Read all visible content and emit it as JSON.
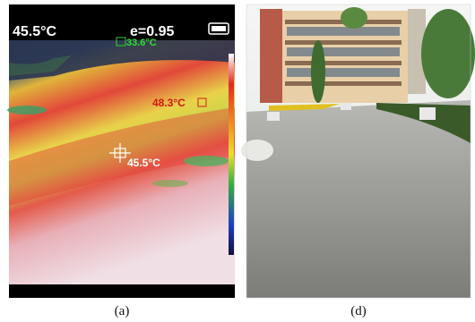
{
  "panels": [
    {
      "overlay": {
        "max_temp": "45.5°C",
        "emissivity": "e=0.95",
        "min_spot": "33.6°C",
        "hot_spot": "48.3°C",
        "center_spot": "45.5°C"
      },
      "caption": "(a)"
    },
    {
      "caption": "(d)"
    }
  ]
}
